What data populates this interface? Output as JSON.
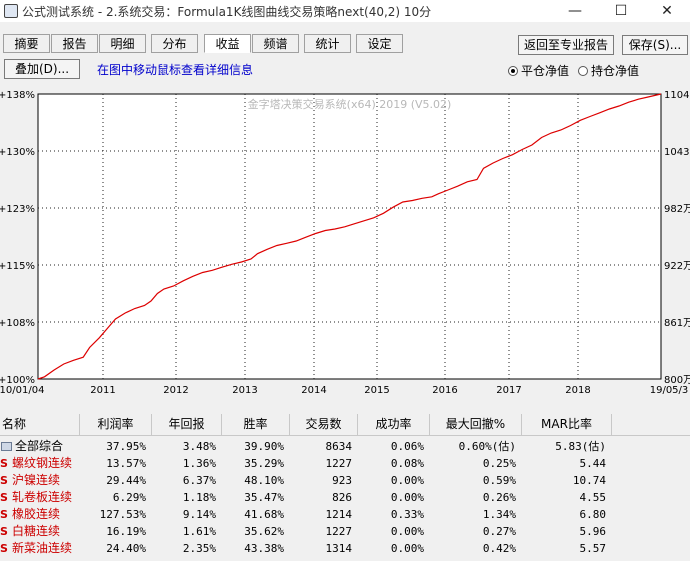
{
  "window": {
    "title": "公式测试系统 - 2.系统交易：Formula1K线图曲线交易策略next(40,2) 10分",
    "min_glyph": "—",
    "max_glyph": "☐",
    "close_glyph": "✕"
  },
  "tabs": [
    {
      "label": "摘要"
    },
    {
      "label": "报告"
    },
    {
      "label": "明细"
    },
    {
      "label": "分布"
    },
    {
      "label": "收益",
      "active": true
    },
    {
      "label": "频谱"
    },
    {
      "label": "统计"
    },
    {
      "label": "设定"
    }
  ],
  "toolbar": {
    "return_label": "返回至专业报告",
    "save_label": "保存(S)...",
    "overlay_label": "叠加(D)...",
    "info_text": "在图中移动鼠标查看详细信息",
    "radio_flat": "平仓净值",
    "radio_hold": "持仓净值"
  },
  "chart_data": {
    "type": "line",
    "title": "金字塔决策交易系统(x64) 2019 (V5.02)",
    "y_left_ticks": [
      "+100%",
      "+108%",
      "+115%",
      "+123%",
      "+130%",
      "+138%"
    ],
    "y_right_ticks": [
      "800万",
      "861万",
      "922万",
      "982万",
      "1043万",
      "1104万"
    ],
    "x_ticks": [
      "10/01/04",
      "2011",
      "2012",
      "2013",
      "2014",
      "2015",
      "2016",
      "2017",
      "2018",
      "19/05/3"
    ],
    "ylim": [
      100,
      138
    ],
    "line_color": "#dd0000",
    "grid": true,
    "series": [
      {
        "values": [
          [
            0,
            100
          ],
          [
            2,
            100.3
          ],
          [
            5,
            101.2
          ],
          [
            8,
            102.0
          ],
          [
            11,
            102.5
          ],
          [
            14,
            102.9
          ],
          [
            16,
            104.2
          ],
          [
            19,
            105.5
          ],
          [
            22,
            107.0
          ],
          [
            24,
            108.0
          ],
          [
            27,
            108.8
          ],
          [
            30,
            109.4
          ],
          [
            33,
            109.8
          ],
          [
            35,
            110.4
          ],
          [
            37,
            111.4
          ],
          [
            39,
            112.0
          ],
          [
            42,
            112.4
          ],
          [
            45,
            113.1
          ],
          [
            48,
            113.7
          ],
          [
            51,
            114.2
          ],
          [
            54,
            114.5
          ],
          [
            57,
            114.9
          ],
          [
            60,
            115.3
          ],
          [
            63,
            115.6
          ],
          [
            66,
            116.0
          ],
          [
            68,
            116.7
          ],
          [
            71,
            117.3
          ],
          [
            74,
            117.8
          ],
          [
            77,
            118.1
          ],
          [
            80,
            118.4
          ],
          [
            83,
            118.9
          ],
          [
            86,
            119.4
          ],
          [
            89,
            119.8
          ],
          [
            92,
            120.0
          ],
          [
            95,
            120.3
          ],
          [
            98,
            120.7
          ],
          [
            101,
            121.1
          ],
          [
            104,
            121.5
          ],
          [
            107,
            122.1
          ],
          [
            110,
            122.9
          ],
          [
            113,
            123.6
          ],
          [
            116,
            123.8
          ],
          [
            119,
            124.1
          ],
          [
            122,
            124.3
          ],
          [
            124,
            124.7
          ],
          [
            127,
            125.2
          ],
          [
            130,
            125.7
          ],
          [
            133,
            126.3
          ],
          [
            136,
            126.6
          ],
          [
            138,
            128.1
          ],
          [
            141,
            128.8
          ],
          [
            144,
            129.4
          ],
          [
            147,
            129.9
          ],
          [
            150,
            130.6
          ],
          [
            153,
            131.2
          ],
          [
            156,
            132.2
          ],
          [
            159,
            132.8
          ],
          [
            162,
            133.2
          ],
          [
            165,
            133.8
          ],
          [
            168,
            134.5
          ],
          [
            171,
            135.0
          ],
          [
            174,
            135.5
          ],
          [
            177,
            136.0
          ],
          [
            180,
            136.4
          ],
          [
            183,
            136.9
          ],
          [
            186,
            137.3
          ],
          [
            189,
            137.6
          ],
          [
            191,
            137.8
          ],
          [
            193,
            138.0
          ]
        ]
      }
    ]
  },
  "table": {
    "headers": [
      "名称",
      "利润率",
      "年回报",
      "胜率",
      "交易数",
      "成功率",
      "最大回撤%",
      "MAR比率"
    ],
    "rows": [
      {
        "icon": "folder-icon",
        "name": "全部综合",
        "profit": "37.95%",
        "annual": "3.48%",
        "win": "39.90%",
        "trades": "8634",
        "success": "0.06%",
        "drawdown": "0.60%(估)",
        "mar": "5.83(估)"
      },
      {
        "icon": "s-icon",
        "sym": "S",
        "name": "螺纹钢连续",
        "profit": "13.57%",
        "annual": "1.36%",
        "win": "35.29%",
        "trades": "1227",
        "success": "0.08%",
        "drawdown": "0.25%",
        "mar": "5.44"
      },
      {
        "icon": "s-icon",
        "sym": "S",
        "name": "沪镍连续",
        "profit": "29.44%",
        "annual": "6.37%",
        "win": "48.10%",
        "trades": "923",
        "success": "0.00%",
        "drawdown": "0.59%",
        "mar": "10.74"
      },
      {
        "icon": "s-icon",
        "sym": "S",
        "name": "轧卷板连续",
        "profit": "6.29%",
        "annual": "1.18%",
        "win": "35.47%",
        "trades": "826",
        "success": "0.00%",
        "drawdown": "0.26%",
        "mar": "4.55"
      },
      {
        "icon": "s-icon",
        "sym": "S",
        "name": "橡胶连续",
        "profit": "127.53%",
        "annual": "9.14%",
        "win": "41.68%",
        "trades": "1214",
        "success": "0.33%",
        "drawdown": "1.34%",
        "mar": "6.80"
      },
      {
        "icon": "s-icon",
        "sym": "S",
        "name": "白糖连续",
        "profit": "16.19%",
        "annual": "1.61%",
        "win": "35.62%",
        "trades": "1227",
        "success": "0.00%",
        "drawdown": "0.27%",
        "mar": "5.96"
      },
      {
        "icon": "s-icon",
        "sym": "S",
        "name": "新菜油连续",
        "profit": "24.40%",
        "annual": "2.35%",
        "win": "43.38%",
        "trades": "1314",
        "success": "0.00%",
        "drawdown": "0.42%",
        "mar": "5.57"
      }
    ]
  }
}
